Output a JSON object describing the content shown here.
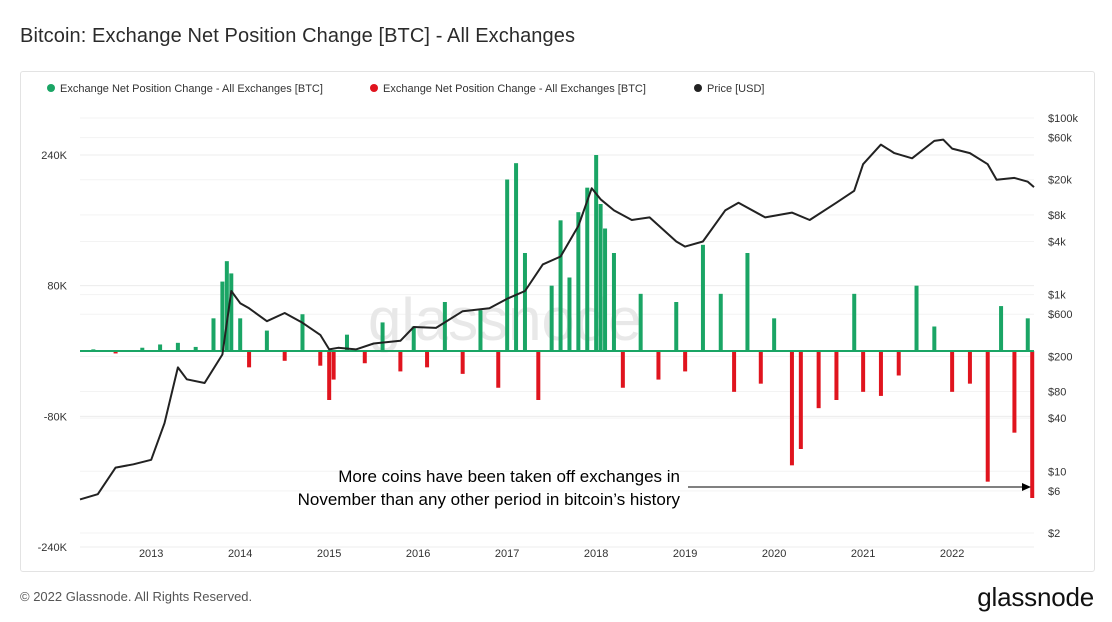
{
  "header": {
    "title": "Bitcoin: Exchange Net Position Change [BTC] - All Exchanges"
  },
  "footer": {
    "copyright": "© 2022 Glassnode. All Rights Reserved.",
    "brand": "glassnode"
  },
  "watermark": "glassnode",
  "colors": {
    "inflow": "#1aa565",
    "outflow": "#e0141e",
    "price": "#222222",
    "grid": "#ececec"
  },
  "chart_data": {
    "type": "bar",
    "legend": [
      {
        "label": "Exchange Net Position Change - All Exchanges [BTC]",
        "color": "#1aa565"
      },
      {
        "label": "Exchange Net Position Change - All Exchanges [BTC]",
        "color": "#e0141e"
      },
      {
        "label": "Price [USD]",
        "color": "#222222"
      }
    ],
    "legend_position": "top-left",
    "grid": true,
    "x_ticks": [
      "2013",
      "2014",
      "2015",
      "2016",
      "2017",
      "2018",
      "2019",
      "2020",
      "2021",
      "2022"
    ],
    "xlim": [
      2012.2,
      2022.92
    ],
    "y_left": {
      "ticks": [
        "240K",
        "80K",
        "-80K",
        "-240K"
      ],
      "tick_values": [
        240000,
        80000,
        -80000,
        -240000
      ],
      "ylim": [
        -240000,
        240000
      ]
    },
    "y_right": {
      "ticks": [
        "$100k",
        "$60k",
        "$20k",
        "$8k",
        "$4k",
        "$1k",
        "$600",
        "$200",
        "$80",
        "$40",
        "$10",
        "$6",
        "$2"
      ],
      "tick_values": [
        100000,
        60000,
        20000,
        8000,
        4000,
        1000,
        600,
        200,
        80,
        40,
        10,
        6,
        2
      ],
      "scale": "log"
    },
    "series": [
      {
        "name": "Exchange Net Position Change - All Exchanges [BTC]",
        "kind": "bars",
        "x": [
          2012.35,
          2012.6,
          2012.9,
          2013.1,
          2013.3,
          2013.5,
          2013.7,
          2013.8,
          2013.85,
          2013.9,
          2014.0,
          2014.1,
          2014.3,
          2014.5,
          2014.7,
          2014.9,
          2015.0,
          2015.05,
          2015.2,
          2015.4,
          2015.6,
          2015.8,
          2015.95,
          2016.1,
          2016.3,
          2016.5,
          2016.7,
          2016.9,
          2017.0,
          2017.1,
          2017.2,
          2017.35,
          2017.5,
          2017.6,
          2017.7,
          2017.8,
          2017.9,
          2018.0,
          2018.05,
          2018.1,
          2018.2,
          2018.3,
          2018.5,
          2018.7,
          2018.9,
          2019.0,
          2019.2,
          2019.4,
          2019.55,
          2019.7,
          2019.85,
          2020.0,
          2020.2,
          2020.3,
          2020.5,
          2020.7,
          2020.9,
          2021.0,
          2021.2,
          2021.4,
          2021.6,
          2021.8,
          2022.0,
          2022.2,
          2022.4,
          2022.55,
          2022.7,
          2022.85,
          2022.9
        ],
        "values": [
          2000,
          -3000,
          4000,
          8000,
          10000,
          5000,
          40000,
          85000,
          110000,
          95000,
          40000,
          -20000,
          25000,
          -12000,
          45000,
          -18000,
          -60000,
          -35000,
          20000,
          -15000,
          35000,
          -25000,
          30000,
          -20000,
          60000,
          -28000,
          50000,
          -45000,
          210000,
          230000,
          120000,
          -60000,
          80000,
          160000,
          90000,
          170000,
          200000,
          240000,
          180000,
          150000,
          120000,
          -45000,
          70000,
          -35000,
          60000,
          -25000,
          130000,
          70000,
          -50000,
          120000,
          -40000,
          40000,
          -140000,
          -120000,
          -70000,
          -60000,
          70000,
          -50000,
          -55000,
          -30000,
          80000,
          30000,
          -50000,
          -40000,
          -160000,
          55000,
          -100000,
          40000,
          -180000
        ]
      },
      {
        "name": "Price [USD]",
        "kind": "line",
        "x": [
          2012.2,
          2012.4,
          2012.6,
          2012.8,
          2013.0,
          2013.15,
          2013.3,
          2013.4,
          2013.6,
          2013.8,
          2013.9,
          2014.0,
          2014.1,
          2014.3,
          2014.5,
          2014.7,
          2014.9,
          2015.0,
          2015.1,
          2015.3,
          2015.5,
          2015.8,
          2015.95,
          2016.2,
          2016.5,
          2016.8,
          2017.0,
          2017.2,
          2017.4,
          2017.6,
          2017.8,
          2017.95,
          2018.05,
          2018.2,
          2018.4,
          2018.6,
          2018.9,
          2019.0,
          2019.2,
          2019.45,
          2019.6,
          2019.9,
          2020.2,
          2020.4,
          2020.7,
          2020.9,
          2021.0,
          2021.2,
          2021.35,
          2021.55,
          2021.8,
          2021.9,
          2022.0,
          2022.2,
          2022.4,
          2022.5,
          2022.7,
          2022.85,
          2022.92
        ],
        "values": [
          4.8,
          5.5,
          11,
          12,
          13.5,
          35,
          150,
          110,
          100,
          210,
          1100,
          800,
          700,
          500,
          620,
          480,
          350,
          240,
          250,
          240,
          280,
          300,
          430,
          420,
          650,
          700,
          900,
          1100,
          2200,
          2700,
          6000,
          16000,
          12000,
          9000,
          7000,
          7500,
          4000,
          3500,
          4000,
          9000,
          11000,
          7500,
          8500,
          7000,
          11000,
          15000,
          30000,
          50000,
          40000,
          35000,
          55000,
          57000,
          45000,
          40000,
          30000,
          20000,
          21000,
          19000,
          16500
        ]
      }
    ],
    "annotation": {
      "text_line1": "More coins have been taken off exchanges in",
      "text_line2": "November than any other period in bitcoin’s history"
    }
  }
}
